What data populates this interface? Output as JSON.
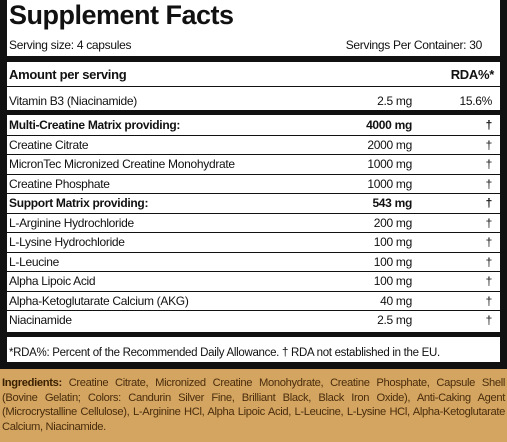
{
  "header": {
    "title": "Supplement Facts",
    "serving_size": "Serving size: 4 capsules",
    "servings": "Servings Per Container: 30"
  },
  "columns": {
    "amount": "Amount per serving",
    "rda": "RDA%*"
  },
  "rows": [
    {
      "name": "Vitamin B3 (Niacinamide)",
      "amount": "2.5 mg",
      "rda": "15.6%"
    },
    {
      "name": "Multi-Creatine Matrix providing:",
      "amount": "4000 mg",
      "rda": "†",
      "bold": true
    },
    {
      "name": "Creatine Citrate",
      "amount": "2000 mg",
      "rda": "†"
    },
    {
      "name": "MicronTec Micronized Creatine Monohydrate",
      "amount": "1000 mg",
      "rda": "†"
    },
    {
      "name": "Creatine Phosphate",
      "amount": "1000 mg",
      "rda": "†"
    },
    {
      "name": "Support Matrix providing:",
      "amount": "543 mg",
      "rda": "†",
      "bold": true
    },
    {
      "name": "L-Arginine Hydrochloride",
      "amount": "200 mg",
      "rda": "†"
    },
    {
      "name": "L-Lysine Hydrochloride",
      "amount": "100 mg",
      "rda": "†"
    },
    {
      "name": "L-Leucine",
      "amount": "100 mg",
      "rda": "†"
    },
    {
      "name": "Alpha Lipoic Acid",
      "amount": "100 mg",
      "rda": "†"
    },
    {
      "name": "Alpha-Ketoglutarate Calcium (AKG)",
      "amount": "40 mg",
      "rda": "†"
    },
    {
      "name": "Niacinamide",
      "amount": "2.5 mg",
      "rda": "†"
    }
  ],
  "footnote": "*RDA%: Percent of the Recommended Daily Allowance. † RDA not established in the EU.",
  "ingredients": {
    "label": "Ingredients:",
    "text": "Creatine Citrate, Micronized Creatine Monohydrate, Creatine Phosphate, Capsule Shell (Bovine Gelatin; Colors: Candurin Silver Fine, Brilliant Black, Black Iron Oxide), Anti-Caking Agent (Microcrystalline Cellulose), L-Arginine HCl, Alpha Lipoic Acid, L-Leucine, L-Lysine HCl, Alpha-Ketoglutarate Calcium, Niacinamide."
  }
}
